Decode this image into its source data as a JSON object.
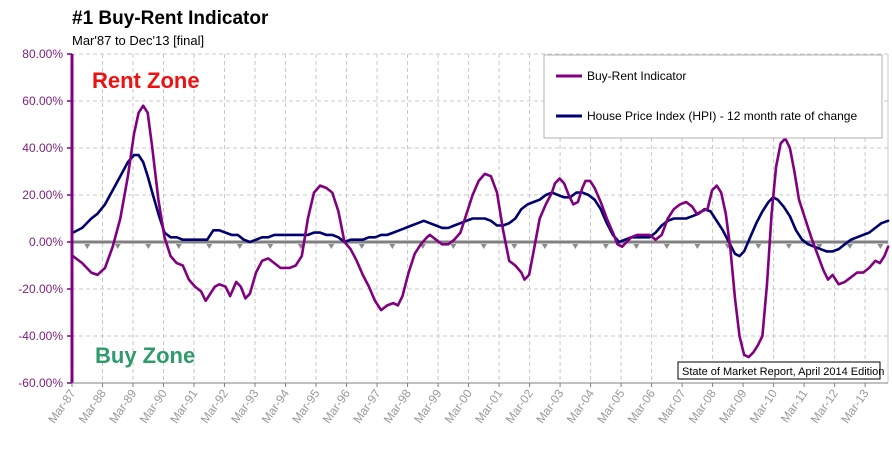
{
  "chart_data": {
    "type": "line",
    "title": "#1 Buy-Rent Indicator",
    "subtitle": "Mar'87 to Dec'13 [final]",
    "xlabel": "",
    "ylabel": "",
    "x_start": 1987.167,
    "x_end": 2013.917,
    "x_tick_labels": [
      "Mar-87",
      "Mar-88",
      "Mar-89",
      "Mar-90",
      "Mar-91",
      "Mar-92",
      "Mar-93",
      "Mar-94",
      "Mar-95",
      "Mar-96",
      "Mar-97",
      "Mar-98",
      "Mar-99",
      "Mar-00",
      "Mar-01",
      "Mar-02",
      "Mar-03",
      "Mar-04",
      "Mar-05",
      "Mar-06",
      "Mar-07",
      "Mar-08",
      "Mar-09",
      "Mar-10",
      "Mar-11",
      "Mar-12",
      "Mar-13"
    ],
    "y_tick_labels": [
      "80.00%",
      "60.00%",
      "40.00%",
      "20.00%",
      "0.00%",
      "-20.00%",
      "-40.00%",
      "-60.00%"
    ],
    "ylim": [
      -60,
      80
    ],
    "grid": true,
    "legend_position": "top-right",
    "annotations": {
      "rent_zone": "Rent Zone",
      "buy_zone": "Buy Zone",
      "source": "State of Market Report, April 2014 Edition"
    },
    "series": [
      {
        "name": "Buy-Rent Indicator",
        "color": "#800080",
        "points": [
          [
            1987.2,
            -6
          ],
          [
            1987.5,
            -9
          ],
          [
            1987.8,
            -13
          ],
          [
            1988.0,
            -14
          ],
          [
            1988.25,
            -11
          ],
          [
            1988.5,
            -2
          ],
          [
            1988.75,
            10
          ],
          [
            1989.0,
            28
          ],
          [
            1989.2,
            46
          ],
          [
            1989.35,
            55
          ],
          [
            1989.5,
            58
          ],
          [
            1989.65,
            55
          ],
          [
            1989.8,
            40
          ],
          [
            1990.0,
            18
          ],
          [
            1990.2,
            2
          ],
          [
            1990.4,
            -6
          ],
          [
            1990.6,
            -9
          ],
          [
            1990.8,
            -10
          ],
          [
            1991.0,
            -16
          ],
          [
            1991.2,
            -19
          ],
          [
            1991.4,
            -21
          ],
          [
            1991.55,
            -25
          ],
          [
            1991.7,
            -22
          ],
          [
            1991.85,
            -19
          ],
          [
            1992.0,
            -18
          ],
          [
            1992.2,
            -19
          ],
          [
            1992.35,
            -23
          ],
          [
            1992.55,
            -17
          ],
          [
            1992.7,
            -19
          ],
          [
            1992.85,
            -24
          ],
          [
            1993.0,
            -22
          ],
          [
            1993.2,
            -13
          ],
          [
            1993.4,
            -8
          ],
          [
            1993.6,
            -7
          ],
          [
            1993.8,
            -9
          ],
          [
            1994.0,
            -11
          ],
          [
            1994.3,
            -11
          ],
          [
            1994.5,
            -10
          ],
          [
            1994.7,
            -6
          ],
          [
            1994.9,
            10
          ],
          [
            1995.1,
            21
          ],
          [
            1995.3,
            24
          ],
          [
            1995.5,
            23
          ],
          [
            1995.7,
            21
          ],
          [
            1995.9,
            13
          ],
          [
            1996.1,
            0
          ],
          [
            1996.3,
            -3
          ],
          [
            1996.5,
            -8
          ],
          [
            1996.7,
            -14
          ],
          [
            1996.9,
            -19
          ],
          [
            1997.1,
            -25
          ],
          [
            1997.3,
            -29
          ],
          [
            1997.5,
            -27
          ],
          [
            1997.7,
            -26
          ],
          [
            1997.85,
            -27
          ],
          [
            1998.0,
            -23
          ],
          [
            1998.2,
            -13
          ],
          [
            1998.4,
            -5
          ],
          [
            1998.6,
            -1
          ],
          [
            1998.8,
            2
          ],
          [
            1998.9,
            3
          ],
          [
            1999.1,
            1
          ],
          [
            1999.3,
            -1
          ],
          [
            1999.5,
            -1
          ],
          [
            1999.7,
            1
          ],
          [
            1999.9,
            4
          ],
          [
            2000.1,
            12
          ],
          [
            2000.3,
            20
          ],
          [
            2000.5,
            26
          ],
          [
            2000.7,
            29
          ],
          [
            2000.9,
            28
          ],
          [
            2001.1,
            21
          ],
          [
            2001.3,
            5
          ],
          [
            2001.5,
            -8
          ],
          [
            2001.7,
            -10
          ],
          [
            2001.9,
            -13
          ],
          [
            2002.0,
            -16
          ],
          [
            2002.15,
            -14
          ],
          [
            2002.3,
            -4
          ],
          [
            2002.5,
            10
          ],
          [
            2002.7,
            16
          ],
          [
            2002.9,
            21
          ],
          [
            2003.0,
            25
          ],
          [
            2003.15,
            27
          ],
          [
            2003.3,
            25
          ],
          [
            2003.45,
            20
          ],
          [
            2003.6,
            16
          ],
          [
            2003.75,
            17
          ],
          [
            2003.9,
            23
          ],
          [
            2004.0,
            26
          ],
          [
            2004.15,
            26
          ],
          [
            2004.3,
            23
          ],
          [
            2004.5,
            17
          ],
          [
            2004.7,
            10
          ],
          [
            2004.9,
            4
          ],
          [
            2005.05,
            -1
          ],
          [
            2005.2,
            -2
          ],
          [
            2005.35,
            0
          ],
          [
            2005.5,
            2
          ],
          [
            2005.7,
            3
          ],
          [
            2005.9,
            3
          ],
          [
            2006.1,
            3
          ],
          [
            2006.3,
            1
          ],
          [
            2006.5,
            3
          ],
          [
            2006.7,
            10
          ],
          [
            2006.9,
            14
          ],
          [
            2007.1,
            16
          ],
          [
            2007.3,
            17
          ],
          [
            2007.5,
            15
          ],
          [
            2007.65,
            12
          ],
          [
            2007.8,
            13
          ],
          [
            2008.0,
            14
          ],
          [
            2008.15,
            22
          ],
          [
            2008.3,
            24
          ],
          [
            2008.45,
            21
          ],
          [
            2008.6,
            12
          ],
          [
            2008.75,
            -3
          ],
          [
            2008.9,
            -24
          ],
          [
            2009.05,
            -40
          ],
          [
            2009.2,
            -48
          ],
          [
            2009.35,
            -49
          ],
          [
            2009.5,
            -47
          ],
          [
            2009.65,
            -44
          ],
          [
            2009.8,
            -40
          ],
          [
            2009.95,
            -18
          ],
          [
            2010.1,
            12
          ],
          [
            2010.25,
            32
          ],
          [
            2010.4,
            42
          ],
          [
            2010.55,
            44
          ],
          [
            2010.7,
            40
          ],
          [
            2010.85,
            30
          ],
          [
            2011.0,
            18
          ],
          [
            2011.2,
            10
          ],
          [
            2011.4,
            2
          ],
          [
            2011.6,
            -5
          ],
          [
            2011.8,
            -12
          ],
          [
            2011.95,
            -16
          ],
          [
            2012.1,
            -14
          ],
          [
            2012.3,
            -18
          ],
          [
            2012.5,
            -17
          ],
          [
            2012.7,
            -15
          ],
          [
            2012.9,
            -13
          ],
          [
            2013.1,
            -13
          ],
          [
            2013.3,
            -11
          ],
          [
            2013.5,
            -8
          ],
          [
            2013.65,
            -9
          ],
          [
            2013.8,
            -6
          ],
          [
            2013.92,
            -2
          ]
        ]
      },
      {
        "name": "House Price Index (HPI) - 12 month rate of change",
        "color": "#000070",
        "points": [
          [
            1987.2,
            4
          ],
          [
            1987.5,
            6
          ],
          [
            1987.8,
            10
          ],
          [
            1988.0,
            12
          ],
          [
            1988.25,
            16
          ],
          [
            1988.5,
            22
          ],
          [
            1988.75,
            28
          ],
          [
            1989.0,
            34
          ],
          [
            1989.2,
            37
          ],
          [
            1989.35,
            37
          ],
          [
            1989.5,
            34
          ],
          [
            1989.65,
            28
          ],
          [
            1989.8,
            21
          ],
          [
            1990.0,
            12
          ],
          [
            1990.2,
            4
          ],
          [
            1990.4,
            2
          ],
          [
            1990.6,
            2
          ],
          [
            1990.8,
            1
          ],
          [
            1991.0,
            1
          ],
          [
            1991.2,
            1
          ],
          [
            1991.4,
            1
          ],
          [
            1991.6,
            1
          ],
          [
            1991.8,
            5
          ],
          [
            1992.0,
            5
          ],
          [
            1992.2,
            4
          ],
          [
            1992.4,
            3
          ],
          [
            1992.6,
            3
          ],
          [
            1992.8,
            1
          ],
          [
            1993.0,
            0
          ],
          [
            1993.2,
            1
          ],
          [
            1993.4,
            2
          ],
          [
            1993.6,
            2
          ],
          [
            1993.8,
            3
          ],
          [
            1994.0,
            3
          ],
          [
            1994.3,
            3
          ],
          [
            1994.5,
            3
          ],
          [
            1994.7,
            3
          ],
          [
            1994.9,
            3
          ],
          [
            1995.1,
            4
          ],
          [
            1995.3,
            4
          ],
          [
            1995.5,
            3
          ],
          [
            1995.7,
            3
          ],
          [
            1995.9,
            2
          ],
          [
            1996.1,
            0
          ],
          [
            1996.3,
            1
          ],
          [
            1996.5,
            1
          ],
          [
            1996.7,
            1
          ],
          [
            1996.9,
            2
          ],
          [
            1997.1,
            2
          ],
          [
            1997.3,
            3
          ],
          [
            1997.5,
            3
          ],
          [
            1997.7,
            4
          ],
          [
            1997.9,
            5
          ],
          [
            1998.1,
            6
          ],
          [
            1998.3,
            7
          ],
          [
            1998.5,
            8
          ],
          [
            1998.7,
            9
          ],
          [
            1998.9,
            8
          ],
          [
            1999.1,
            7
          ],
          [
            1999.3,
            6
          ],
          [
            1999.5,
            6
          ],
          [
            1999.7,
            7
          ],
          [
            1999.9,
            8
          ],
          [
            2000.1,
            9
          ],
          [
            2000.3,
            10
          ],
          [
            2000.5,
            10
          ],
          [
            2000.7,
            10
          ],
          [
            2000.9,
            9
          ],
          [
            2001.1,
            7
          ],
          [
            2001.3,
            7
          ],
          [
            2001.5,
            8
          ],
          [
            2001.7,
            10
          ],
          [
            2001.9,
            14
          ],
          [
            2002.1,
            16
          ],
          [
            2002.3,
            17
          ],
          [
            2002.5,
            18
          ],
          [
            2002.7,
            20
          ],
          [
            2002.9,
            21
          ],
          [
            2003.1,
            20
          ],
          [
            2003.3,
            19
          ],
          [
            2003.5,
            19
          ],
          [
            2003.7,
            21
          ],
          [
            2003.9,
            21
          ],
          [
            2004.1,
            20
          ],
          [
            2004.3,
            18
          ],
          [
            2004.5,
            14
          ],
          [
            2004.7,
            8
          ],
          [
            2004.9,
            3
          ],
          [
            2005.1,
            0
          ],
          [
            2005.3,
            1
          ],
          [
            2005.5,
            2
          ],
          [
            2005.7,
            2
          ],
          [
            2005.9,
            2
          ],
          [
            2006.1,
            2
          ],
          [
            2006.3,
            4
          ],
          [
            2006.5,
            7
          ],
          [
            2006.7,
            9
          ],
          [
            2006.9,
            10
          ],
          [
            2007.1,
            10
          ],
          [
            2007.3,
            10
          ],
          [
            2007.5,
            11
          ],
          [
            2007.7,
            12
          ],
          [
            2007.9,
            14
          ],
          [
            2008.1,
            13
          ],
          [
            2008.3,
            9
          ],
          [
            2008.5,
            5
          ],
          [
            2008.7,
            0
          ],
          [
            2008.9,
            -5
          ],
          [
            2009.05,
            -6
          ],
          [
            2009.2,
            -4
          ],
          [
            2009.4,
            2
          ],
          [
            2009.6,
            8
          ],
          [
            2009.8,
            13
          ],
          [
            2010.0,
            17
          ],
          [
            2010.15,
            19
          ],
          [
            2010.3,
            18
          ],
          [
            2010.5,
            15
          ],
          [
            2010.7,
            11
          ],
          [
            2010.9,
            5
          ],
          [
            2011.1,
            1
          ],
          [
            2011.3,
            -1
          ],
          [
            2011.5,
            -2
          ],
          [
            2011.7,
            -3
          ],
          [
            2011.9,
            -4
          ],
          [
            2012.1,
            -4
          ],
          [
            2012.3,
            -3
          ],
          [
            2012.5,
            -1
          ],
          [
            2012.7,
            1
          ],
          [
            2012.9,
            2
          ],
          [
            2013.1,
            3
          ],
          [
            2013.3,
            4
          ],
          [
            2013.5,
            6
          ],
          [
            2013.7,
            8
          ],
          [
            2013.92,
            9
          ]
        ]
      }
    ]
  }
}
